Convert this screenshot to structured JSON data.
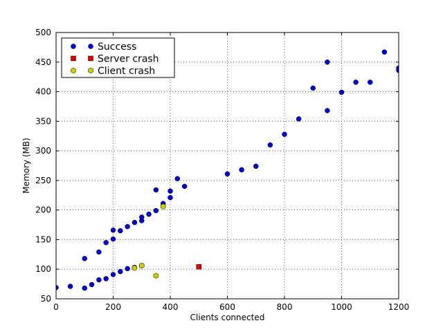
{
  "chart_data": {
    "type": "scatter",
    "xlabel": "Clients connected",
    "ylabel": "Memory (MB)",
    "xlim": [
      0,
      1200
    ],
    "ylim": [
      50,
      500
    ],
    "xticks": [
      0,
      200,
      400,
      600,
      800,
      1000,
      1200
    ],
    "yticks": [
      50,
      100,
      150,
      200,
      250,
      300,
      350,
      400,
      450,
      500
    ],
    "grid": true,
    "legend_position": "top-left",
    "series": [
      {
        "name": "Success",
        "marker": "circle",
        "color": "#0000cc",
        "x": [
          0,
          50,
          100,
          125,
          150,
          175,
          200,
          225,
          250,
          275,
          300,
          100,
          150,
          175,
          200,
          200,
          225,
          250,
          275,
          300,
          300,
          325,
          350,
          350,
          375,
          400,
          400,
          425,
          450,
          600,
          650,
          700,
          750,
          800,
          850,
          900,
          950,
          950,
          1000,
          1050,
          1100,
          1150,
          1200,
          1200
        ],
        "y": [
          69,
          71,
          68,
          74,
          82,
          84,
          91,
          96,
          101,
          103,
          106,
          118,
          129,
          145,
          151,
          166,
          165,
          172,
          179,
          182,
          188,
          193,
          199,
          234,
          211,
          221,
          232,
          253,
          240,
          261,
          268,
          274,
          310,
          328,
          354,
          406,
          368,
          450,
          399,
          416,
          416,
          467,
          436,
          440
        ]
      },
      {
        "name": "Server crash",
        "marker": "square",
        "color": "#dd0000",
        "x": [
          500
        ],
        "y": [
          104
        ]
      },
      {
        "name": "Client crash",
        "marker": "hexagon",
        "color": "#cccc00",
        "x": [
          275,
          300,
          350,
          375
        ],
        "y": [
          102,
          106,
          89,
          206
        ]
      }
    ]
  }
}
